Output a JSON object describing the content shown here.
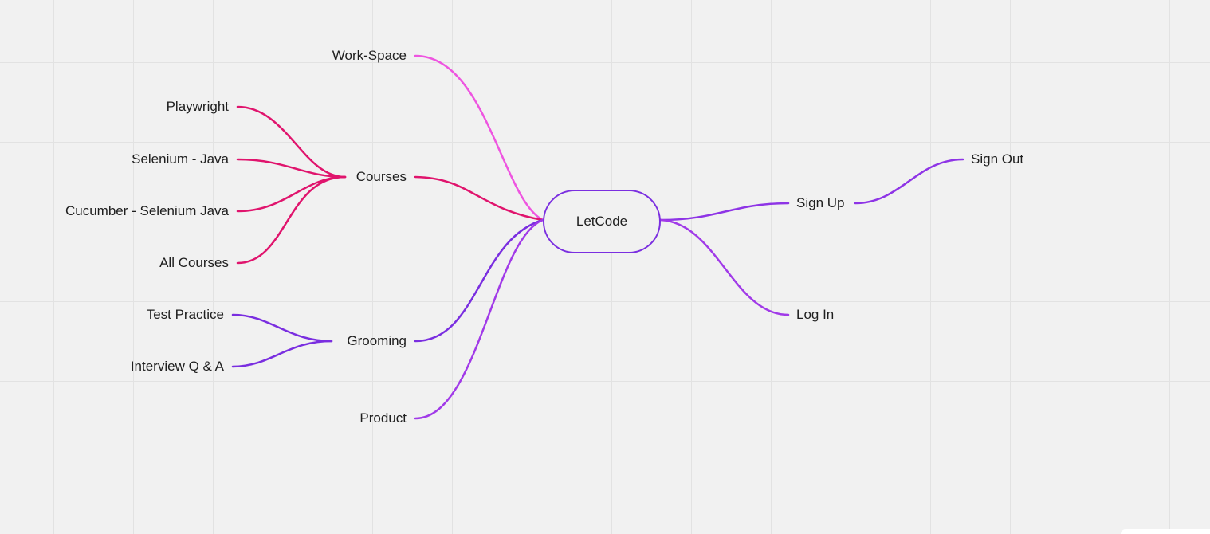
{
  "root": {
    "label": "LetCode",
    "color": "#7b2fe0"
  },
  "colors": {
    "background": "#f1f1f1",
    "grid": "#e2e2e2",
    "workspace_branch": "#ee55e0",
    "courses_branch": "#e0146d",
    "grooming_branch": "#7a2ee0",
    "product_branch": "#a13ae8",
    "auth_branch": "#8e34e6"
  },
  "left_branches": {
    "workspace": {
      "label": "Work-Space"
    },
    "courses": {
      "label": "Courses",
      "children": [
        {
          "label": "Playwright"
        },
        {
          "label": "Selenium - Java"
        },
        {
          "label": "Cucumber - Selenium Java"
        },
        {
          "label": "All Courses"
        }
      ]
    },
    "grooming": {
      "label": "Grooming",
      "children": [
        {
          "label": "Test Practice"
        },
        {
          "label": "Interview Q & A"
        }
      ]
    },
    "product": {
      "label": "Product"
    }
  },
  "right_branches": {
    "sign_up": {
      "label": "Sign Up",
      "children": [
        {
          "label": "Sign Out"
        }
      ]
    },
    "log_in": {
      "label": "Log In"
    }
  }
}
